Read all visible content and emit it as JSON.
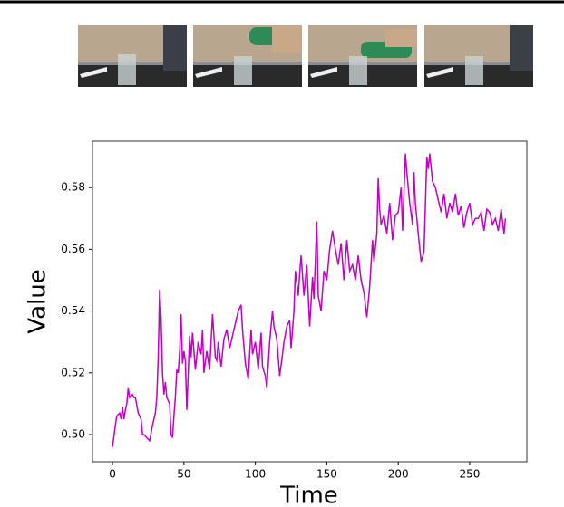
{
  "chart_data": {
    "type": "line",
    "xlabel": "Time",
    "ylabel": "Value",
    "xlim": [
      -14,
      290
    ],
    "ylim": [
      0.4912,
      0.595
    ],
    "xticks": [
      0,
      50,
      100,
      150,
      200,
      250
    ],
    "yticks": [
      {
        "value": 0.5,
        "label": "0.50"
      },
      {
        "value": 0.52,
        "label": "0.52"
      },
      {
        "value": 0.54,
        "label": "0.54"
      },
      {
        "value": 0.56,
        "label": "0.56"
      },
      {
        "value": 0.58,
        "label": "0.58"
      }
    ],
    "color": "#c000c0",
    "x": [
      0,
      2,
      3,
      5,
      6,
      7,
      8,
      9,
      10,
      11,
      12,
      14,
      15,
      16,
      18,
      20,
      21,
      22,
      24,
      26,
      28,
      29,
      30,
      31,
      32,
      33,
      34,
      35,
      36,
      37,
      38,
      40,
      41,
      42,
      43,
      44,
      45,
      46,
      47,
      48,
      49,
      50,
      51,
      52,
      53,
      54,
      55,
      56,
      57,
      58,
      60,
      62,
      63,
      64,
      66,
      68,
      70,
      72,
      73,
      74,
      76,
      78,
      80,
      82,
      84,
      86,
      88,
      90,
      91,
      93,
      95,
      97,
      98,
      100,
      102,
      104,
      105,
      107,
      108,
      110,
      112,
      113,
      115,
      117,
      119,
      120,
      122,
      124,
      125,
      127,
      128,
      130,
      131,
      132,
      134,
      136,
      138,
      140,
      141,
      143,
      144,
      146,
      148,
      150,
      152,
      154,
      156,
      158,
      160,
      162,
      164,
      166,
      168,
      170,
      172,
      174,
      176,
      178,
      180,
      182,
      183,
      185,
      186,
      187,
      188,
      190,
      192,
      194,
      196,
      198,
      200,
      202,
      203,
      205,
      206,
      208,
      210,
      211,
      212,
      214,
      216,
      218,
      220,
      221,
      222,
      224,
      226,
      228,
      230,
      232,
      234,
      236,
      238,
      240,
      242,
      244,
      246,
      248,
      250,
      252,
      254,
      256,
      258,
      260,
      262,
      264,
      266,
      268,
      270,
      272,
      274,
      275
    ],
    "values": [
      0.496,
      0.503,
      0.506,
      0.507,
      0.505,
      0.509,
      0.505,
      0.508,
      0.51,
      0.515,
      0.512,
      0.513,
      0.512,
      0.512,
      0.507,
      0.505,
      0.5,
      0.5,
      0.499,
      0.498,
      0.503,
      0.505,
      0.507,
      0.512,
      0.525,
      0.547,
      0.538,
      0.52,
      0.513,
      0.517,
      0.512,
      0.51,
      0.5,
      0.499,
      0.506,
      0.512,
      0.521,
      0.52,
      0.527,
      0.539,
      0.523,
      0.527,
      0.524,
      0.508,
      0.52,
      0.532,
      0.525,
      0.533,
      0.527,
      0.521,
      0.53,
      0.526,
      0.534,
      0.52,
      0.527,
      0.521,
      0.539,
      0.525,
      0.524,
      0.53,
      0.522,
      0.531,
      0.534,
      0.528,
      0.532,
      0.536,
      0.54,
      0.542,
      0.534,
      0.523,
      0.518,
      0.534,
      0.526,
      0.53,
      0.521,
      0.533,
      0.522,
      0.519,
      0.515,
      0.53,
      0.54,
      0.535,
      0.531,
      0.519,
      0.526,
      0.53,
      0.535,
      0.537,
      0.528,
      0.54,
      0.553,
      0.545,
      0.552,
      0.558,
      0.545,
      0.555,
      0.535,
      0.551,
      0.544,
      0.569,
      0.545,
      0.54,
      0.553,
      0.55,
      0.56,
      0.566,
      0.56,
      0.555,
      0.562,
      0.55,
      0.563,
      0.553,
      0.555,
      0.55,
      0.558,
      0.55,
      0.546,
      0.538,
      0.548,
      0.563,
      0.556,
      0.565,
      0.583,
      0.573,
      0.568,
      0.571,
      0.565,
      0.575,
      0.563,
      0.571,
      0.572,
      0.58,
      0.566,
      0.591,
      0.585,
      0.575,
      0.568,
      0.585,
      0.575,
      0.565,
      0.556,
      0.559,
      0.59,
      0.586,
      0.591,
      0.582,
      0.58,
      0.576,
      0.572,
      0.578,
      0.57,
      0.575,
      0.572,
      0.578,
      0.571,
      0.574,
      0.567,
      0.572,
      0.575,
      0.568,
      0.57,
      0.57,
      0.572,
      0.566,
      0.573,
      0.572,
      0.568,
      0.57,
      0.566,
      0.573,
      0.565,
      0.57
    ]
  }
}
